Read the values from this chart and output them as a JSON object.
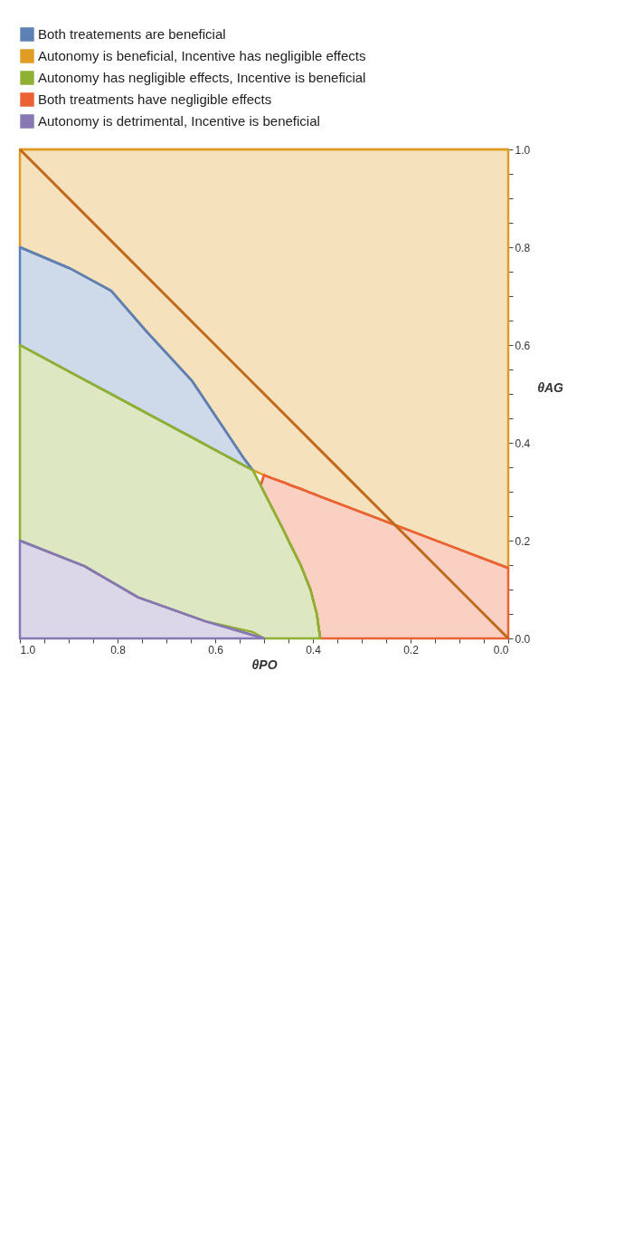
{
  "chart_data": {
    "type": "line",
    "xlabel": "θPO",
    "ylabel": "θAG",
    "xlim": [
      1.0,
      0.0
    ],
    "ylim": [
      0.0,
      1.0
    ],
    "xticks": [
      {
        "value": 0,
        "label": "0.0"
      },
      {
        "value": 0.05,
        "label": null
      },
      {
        "value": 0.1,
        "label": null
      },
      {
        "value": 0.15,
        "label": null
      },
      0.2,
      {
        "value": 0.25,
        "label": null
      },
      {
        "value": 0.3,
        "label": null
      },
      {
        "value": 0.35,
        "label": null
      },
      0.4,
      {
        "value": 0.45,
        "label": null
      },
      {
        "value": 0.5,
        "label": null
      },
      {
        "value": 0.55,
        "label": null
      },
      0.6,
      {
        "value": 0.65,
        "label": null
      },
      {
        "value": 0.7,
        "label": null
      },
      {
        "value": 0.75,
        "label": null
      },
      0.8,
      {
        "value": 0.85,
        "label": null
      },
      {
        "value": 0.9,
        "label": null
      },
      {
        "value": 0.95,
        "label": null
      },
      {
        "value": 1,
        "label": "1.0"
      }
    ],
    "yticks": [
      {
        "value": 0,
        "label": "0.0"
      },
      {
        "value": 0.05,
        "label": null
      },
      {
        "value": 0.1,
        "label": null
      },
      {
        "value": 0.15,
        "label": null
      },
      0.2,
      {
        "value": 0.25,
        "label": null
      },
      {
        "value": 0.3,
        "label": null
      },
      {
        "value": 0.35,
        "label": null
      },
      0.4,
      {
        "value": 0.45,
        "label": null
      },
      {
        "value": 0.5,
        "label": null
      },
      {
        "value": 0.55,
        "label": null
      },
      0.6,
      {
        "value": 0.65,
        "label": null
      },
      {
        "value": 0.7,
        "label": null
      },
      {
        "value": 0.75,
        "label": null
      },
      0.8,
      {
        "value": 0.85,
        "label": null
      },
      {
        "value": 0.9,
        "label": null
      },
      {
        "value": 0.95,
        "label": null
      },
      {
        "value": 1,
        "label": "1.0"
      }
    ],
    "grid": false,
    "legend": "top",
    "series": [
      {
        "name": "Both treatements are beneficial",
        "color": "#5e81b5",
        "x": [
          0.523,
          0.542,
          0.647,
          0.741,
          0.813,
          0.896,
          1.0
        ],
        "values": [
          0.344,
          0.369,
          0.526,
          0.628,
          0.711,
          0.756,
          0.8
        ],
        "upper": [
          0.344,
          0.369,
          0.526,
          0.628,
          0.711,
          0.756,
          0.8
        ],
        "lower": [
          0.344,
          0.354,
          0.411,
          0.461,
          0.5,
          0.544,
          0.6
        ]
      },
      {
        "name": "Autonomy is beneficial, Incentive has negligible effects",
        "color": "#e19c24",
        "x": [
          0.0,
          0.5,
          0.523,
          0.542,
          0.647,
          0.741,
          0.813,
          0.896,
          1.0
        ],
        "values": [
          1,
          1,
          1,
          1,
          1,
          1,
          1,
          1,
          1
        ],
        "upper": [
          1,
          1,
          1,
          1,
          1,
          1,
          1,
          1,
          1
        ],
        "lower": [
          0.144,
          0.334,
          0.344,
          0.369,
          0.526,
          0.628,
          0.711,
          0.756,
          0.8
        ]
      },
      {
        "name": "Autonomy has negligible effects, Incentive is beneficial",
        "color": "#8fb032",
        "x": [
          0.385,
          0.392,
          0.405,
          0.425,
          0.445,
          0.462,
          0.485,
          0.5,
          0.507,
          0.523,
          0.62,
          0.758,
          0.868,
          1.0
        ],
        "values": [
          0,
          0.05,
          0.1,
          0.15,
          0.19,
          0.225,
          0.27,
          0.299,
          0.313,
          0.344,
          0.396,
          0.47,
          0.529,
          0.6
        ],
        "upper": [
          0,
          0.05,
          0.1,
          0.15,
          0.19,
          0.225,
          0.27,
          0.299,
          0.313,
          0.344,
          0.396,
          0.47,
          0.529,
          0.6
        ],
        "lower": [
          0,
          0,
          0,
          0,
          0,
          0,
          0,
          0,
          0.004,
          0.013,
          0.035,
          0.084,
          0.148,
          0.2
        ]
      },
      {
        "name": "Both treatments have negligible effects",
        "color": "#eb6235",
        "x": [
          0.0,
          0.385,
          0.392,
          0.405,
          0.425,
          0.445,
          0.462,
          0.485,
          0.5,
          0.507
        ],
        "values": [
          0.144,
          0.29,
          0.293,
          0.298,
          0.306,
          0.313,
          0.32,
          0.328,
          0.334,
          0.313
        ],
        "upper": [
          0.144,
          0.29,
          0.293,
          0.298,
          0.306,
          0.313,
          0.32,
          0.328,
          0.334,
          0.313
        ],
        "lower": [
          0,
          0,
          0.05,
          0.1,
          0.15,
          0.19,
          0.225,
          0.27,
          0.299,
          0.313
        ]
      },
      {
        "name": "Autonomy is detrimental, Incentive is beneficial",
        "color": "#8778b3",
        "x": [
          0.5,
          0.62,
          0.758,
          0.868,
          1.0
        ],
        "values": [
          0,
          0.035,
          0.084,
          0.148,
          0.2
        ],
        "upper": [
          0,
          0.035,
          0.084,
          0.148,
          0.2
        ],
        "lower": [
          0,
          0,
          0,
          0,
          0
        ]
      },
      {
        "color": "#c0681a",
        "x": [
          0.0,
          1.0
        ],
        "values": [
          0.0,
          1.0
        ]
      }
    ]
  }
}
